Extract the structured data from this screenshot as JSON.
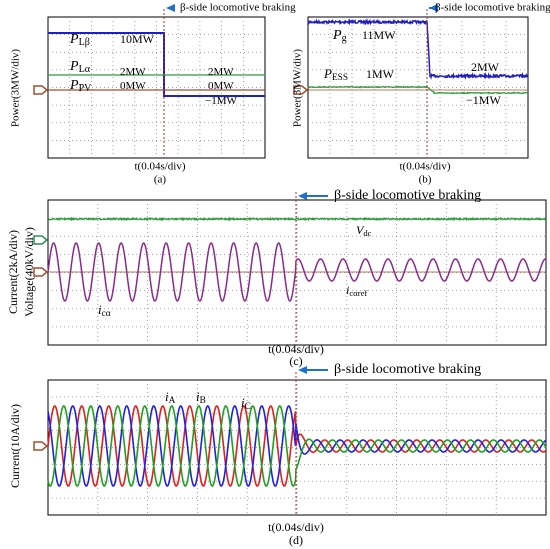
{
  "panels": [
    {
      "title": "β-side locomotive braking",
      "y_labels": [
        "Power(3MW/div)"
      ],
      "x_label": "t(0.04s/div)",
      "caption": "(a)",
      "annotations": [
        {
          "text": "P",
          "sub": "Lβ"
        },
        {
          "text": "10MW"
        },
        {
          "text": "P",
          "sub": "Lα"
        },
        {
          "text": "2MW"
        },
        {
          "text": "2MW"
        },
        {
          "text": "P",
          "sub": "PV"
        },
        {
          "text": "0MW"
        },
        {
          "text": "0MW"
        },
        {
          "text": "−1MW"
        }
      ]
    },
    {
      "title": "β-side locomotive braking",
      "y_labels": [
        "Power(3MW/div)"
      ],
      "x_label": "t(0.04s/div)",
      "caption": "(b)",
      "annotations": [
        {
          "text": "P",
          "sub": "g"
        },
        {
          "text": "11MW"
        },
        {
          "text": "P",
          "sub": "ESS"
        },
        {
          "text": "1MW"
        },
        {
          "text": "2MW"
        },
        {
          "text": "−1MW"
        }
      ]
    },
    {
      "title": "β-side locomotive braking",
      "y_labels": [
        "Current(2kA/div)",
        "Voltage(40kV/div)"
      ],
      "x_label": "t(0.04s/div)",
      "caption": "(c)",
      "annotations": [
        {
          "text": "V",
          "sub": "dc"
        },
        {
          "text": "i",
          "sub": "cαref"
        },
        {
          "text": "i",
          "sub": "cα"
        }
      ]
    },
    {
      "title": "β-side locomotive braking",
      "y_labels": [
        "Current(10A/div)"
      ],
      "x_label": "t(0.04s/div)",
      "caption": "(d)",
      "annotations": [
        {
          "text": "i",
          "sub": "A"
        },
        {
          "text": "i",
          "sub": "B"
        },
        {
          "text": "i",
          "sub": "C"
        }
      ]
    }
  ]
}
